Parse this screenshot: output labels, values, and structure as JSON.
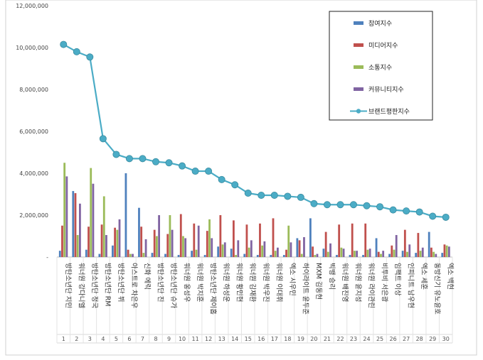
{
  "chart_data": {
    "type": "bar",
    "title": "",
    "xlabel": "",
    "ylabel": "",
    "ylim": [
      0,
      12000000
    ],
    "yticks": [
      "-",
      "2,000,000",
      "4,000,000",
      "6,000,000",
      "8,000,000",
      "10,000,000",
      "12,000,000"
    ],
    "grid": false,
    "legend_position": "top-right",
    "x": [
      "1",
      "2",
      "3",
      "4",
      "5",
      "6",
      "7",
      "8",
      "9",
      "10",
      "11",
      "12",
      "13",
      "14",
      "15",
      "16",
      "17",
      "18",
      "19",
      "20",
      "21",
      "22",
      "23",
      "24",
      "25",
      "26",
      "27",
      "28",
      "29",
      "30"
    ],
    "categories": [
      "방탄소년단 지민",
      "워너원 강다니엘",
      "방탄소년단 정국",
      "방탄소년단 RM",
      "방탄소년단 뷔",
      "아스트로 차은우",
      "신화 에릭",
      "방탄소년단 진",
      "방탄소년단 슈가",
      "워너원 옹성우",
      "워너원 박지훈",
      "방탄소년단 제이홉",
      "워너원 하성운",
      "워너원 황민현",
      "워너원 김재환",
      "워너원 박우진",
      "워너원 이대휘",
      "엑소 시우민",
      "하이라이트 윤두준",
      "MXM 김동현",
      "빅뱅 승리",
      "워너원 배진영",
      "워너원 윤지성",
      "워너원 라이관린",
      "비투비 서은광",
      "임팩트 이상",
      "인피니트 남우현",
      "엑소 세훈",
      "동방신기 유노윤호",
      "엑소 백현"
    ],
    "series": [
      {
        "name": "참여지수",
        "kind": "bar",
        "color": "#4f81bd",
        "values": [
          300000,
          3150000,
          350000,
          150000,
          550000,
          4000000,
          2350000,
          200000,
          150000,
          100000,
          300000,
          100000,
          500000,
          400000,
          150000,
          100000,
          100000,
          100000,
          900000,
          1850000,
          400000,
          100000,
          100000,
          100000,
          900000,
          150000,
          300000,
          200000,
          1200000,
          200000
        ]
      },
      {
        "name": "미디어지수",
        "kind": "bar",
        "color": "#c0504d",
        "values": [
          1500000,
          3050000,
          1450000,
          1550000,
          1400000,
          350000,
          1450000,
          1300000,
          1100000,
          2050000,
          1600000,
          1250000,
          2000000,
          1750000,
          1550000,
          1600000,
          1850000,
          350000,
          800000,
          500000,
          1200000,
          1550000,
          1600000,
          1600000,
          250000,
          550000,
          1300000,
          1150000,
          450000,
          600000
        ]
      },
      {
        "name": "소통지수",
        "kind": "bar",
        "color": "#9bbb59",
        "values": [
          4500000,
          1050000,
          4250000,
          2900000,
          1300000,
          150000,
          200000,
          1000000,
          2000000,
          1000000,
          350000,
          1800000,
          600000,
          100000,
          450000,
          550000,
          300000,
          1500000,
          150000,
          100000,
          250000,
          450000,
          300000,
          350000,
          150000,
          350000,
          250000,
          300000,
          250000,
          550000
        ]
      },
      {
        "name": "커뮤니티지수",
        "kind": "bar",
        "color": "#8064a2",
        "values": [
          3850000,
          2550000,
          3500000,
          1050000,
          1800000,
          150000,
          850000,
          2000000,
          1300000,
          900000,
          1500000,
          900000,
          700000,
          800000,
          800000,
          750000,
          450000,
          700000,
          950000,
          150000,
          650000,
          400000,
          300000,
          400000,
          300000,
          1050000,
          600000,
          450000,
          150000,
          500000
        ]
      },
      {
        "name": "브랜드평판지수",
        "kind": "line",
        "color": "#4bacc6",
        "values": [
          10150000,
          9800000,
          9550000,
          5650000,
          4900000,
          4700000,
          4700000,
          4550000,
          4500000,
          4350000,
          4100000,
          4100000,
          3700000,
          3450000,
          3050000,
          2950000,
          2950000,
          2900000,
          2850000,
          2550000,
          2500000,
          2500000,
          2500000,
          2450000,
          2400000,
          2250000,
          2200000,
          2150000,
          1950000,
          1900000
        ]
      }
    ]
  }
}
